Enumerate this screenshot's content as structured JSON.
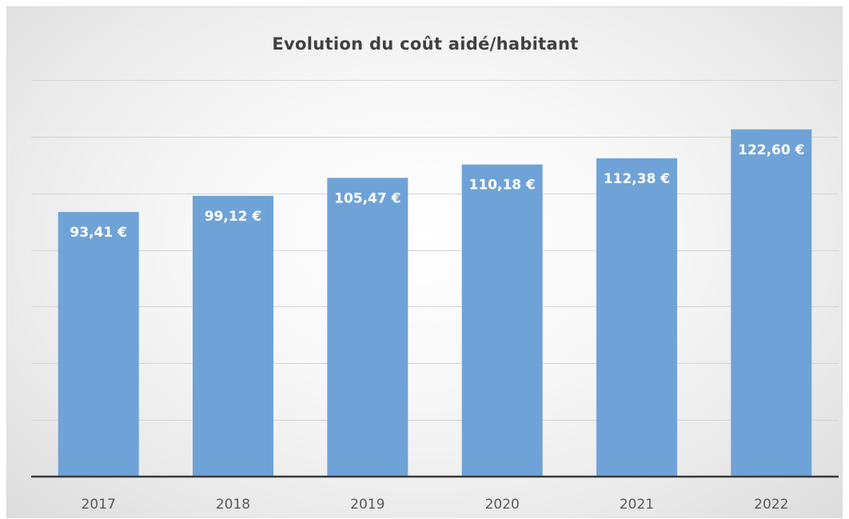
{
  "chart_data": {
    "type": "bar",
    "title": "Evolution du coût aidé/habitant",
    "xlabel": "",
    "ylabel": "",
    "categories": [
      "2017",
      "2018",
      "2019",
      "2020",
      "2021",
      "2022"
    ],
    "values": [
      93.41,
      99.12,
      105.47,
      110.18,
      112.38,
      122.6
    ],
    "data_labels": [
      "93,41 €",
      "99,12 €",
      "105,47 €",
      "110,18 €",
      "112,38 €",
      "122,60 €"
    ],
    "ylim": [
      0,
      140
    ],
    "y_gridlines": [
      20,
      40,
      60,
      80,
      100,
      120,
      140
    ],
    "y_tick_labels_shown": false,
    "grid": true,
    "legend": "none",
    "colors": {
      "bar": "#6fa3d7",
      "data_label": "#ffffff",
      "axis": "#3a3a3a",
      "gridline": "#d4d4d4"
    }
  }
}
